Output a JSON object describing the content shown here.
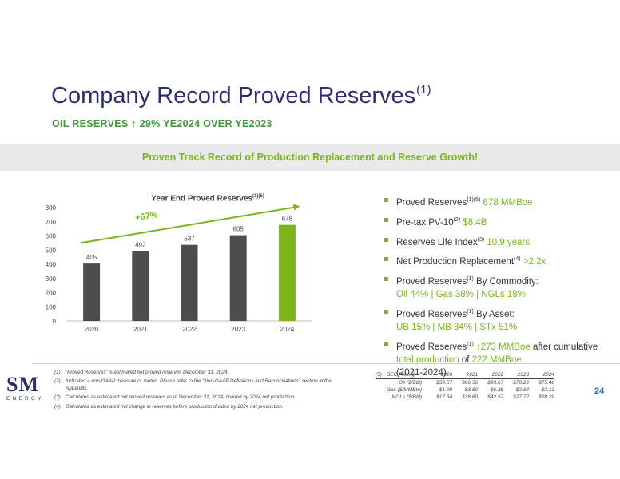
{
  "title": "Company Record Proved Reserves",
  "title_sup": "(1)",
  "subtitle": "OIL RESERVES ↑ 29% YE2024 OVER YE2023",
  "banner": "Proven Track Record of Production Replacement and Reserve Growth!",
  "chart_data": {
    "type": "bar",
    "title": "Year End Proved Reserves",
    "title_sup": "(1)(5)",
    "categories": [
      "2020",
      "2021",
      "2022",
      "2023",
      "2024"
    ],
    "values": [
      405,
      492,
      537,
      605,
      678
    ],
    "ylim": [
      0,
      800
    ],
    "yticks": [
      0,
      100,
      200,
      300,
      400,
      500,
      600,
      700,
      800
    ],
    "trend_label": "+67%",
    "colors": {
      "bar": "#4d4d4d",
      "highlight": "#7ab51d",
      "trend": "#7ab51d"
    }
  },
  "bullets": {
    "b1": {
      "text": "Proved Reserves",
      "sup": "(1)(5)",
      "value": "678 MMBoe"
    },
    "b2": {
      "text": "Pre-tax PV-10",
      "sup": "(2)",
      "value": "$8.4B"
    },
    "b3": {
      "text": "Reserves Life Index",
      "sup": "(3)",
      "value": "10.9 years"
    },
    "b4": {
      "text": "Net Production Replacement",
      "sup": "(4)",
      "value": ">2.2x"
    },
    "b5": {
      "text": "Proved Reserves",
      "sup": "(1)",
      "after": "By Commodity:",
      "value": "Oil 44% | Gas 38% | NGLs 18%"
    },
    "b6": {
      "text": "Proved Reserves",
      "sup": "(1)",
      "after": "By Asset:",
      "value": "UB 15% | MB 34% | STx 51%"
    },
    "b7": {
      "text": "Proved Reserves",
      "sup": "(1)",
      "highlight": "↑273 MMBoe",
      "mid": "after cumulative",
      "link": "total production",
      "of": "of",
      "value": "222 MMBoe",
      "tail": "(2021-2024)"
    }
  },
  "footnotes": [
    {
      "n": "(1)",
      "text": "“Proved Reserves” is estimated net proved reserves December 31, 2024."
    },
    {
      "n": "(2)",
      "text": "Indicates a non-GAAP measure or metric. Please refer to the “Non-GAAP Definitions and Reconciliations” section in the Appendix."
    },
    {
      "n": "(3)",
      "text": "Calculated as estimated net proved reserves as of December 31, 2024, divided by 2024 net production."
    },
    {
      "n": "(4)",
      "text": "Calculated as estimated net change in reserves before production divided by 2024 net production."
    }
  ],
  "pricing": {
    "n": "(5)",
    "header": "SEC Pricing",
    "years": [
      "2020",
      "2021",
      "2022",
      "2023",
      "2024"
    ],
    "rows": [
      {
        "label": "Oil ($/Bbl)",
        "values": [
          "$39.57",
          "$66.56",
          "$93.67",
          "$78.22",
          "$75.48"
        ]
      },
      {
        "label": "Gas ($/MMBtu)",
        "values": [
          "$1.99",
          "$3.60",
          "$6.36",
          "$2.64",
          "$2.13"
        ]
      },
      {
        "label": "NGLs ($/Bbl)",
        "values": [
          "$17.64",
          "$36.60",
          "$42.52",
          "$27.72",
          "$28.29"
        ]
      }
    ]
  },
  "logo": {
    "sm": "SM",
    "energy": "ENERGY"
  },
  "page_number": "24"
}
